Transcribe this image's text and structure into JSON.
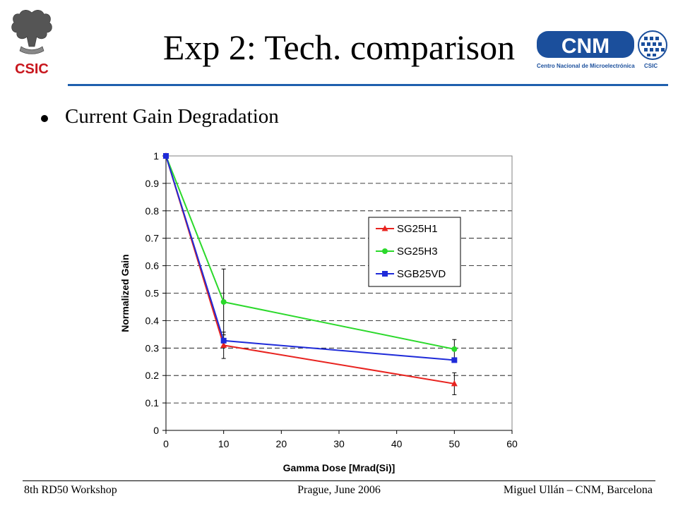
{
  "slide": {
    "title": "Exp 2: Tech. comparison",
    "bullet": "Current Gain Degradation",
    "logo_left_text": "CSIC",
    "logo_right_text": "CNM",
    "logo_right_subtext": "Centro Nacional de Microelectrónica",
    "logo_right_subtext2": "CSIC"
  },
  "footer": {
    "left": "8th RD50 Workshop",
    "center": "Prague, June 2006",
    "right": "Miguel Ullán – CNM, Barcelona"
  },
  "colors": {
    "accent": "#1f5fae",
    "plot_border": "#808080",
    "grid": "#000000"
  },
  "chart_data": {
    "type": "line",
    "title": "",
    "xlabel": "Gamma Dose [Mrad(Si)]",
    "ylabel": "Normalized Gain",
    "xlim": [
      0,
      60
    ],
    "ylim": [
      0,
      1
    ],
    "xticks": [
      "0",
      "10",
      "20",
      "30",
      "40",
      "50",
      "60"
    ],
    "yticks": [
      "0",
      "0.1",
      "0.2",
      "0.3",
      "0.4",
      "0.5",
      "0.6",
      "0.7",
      "0.8",
      "0.9",
      "1"
    ],
    "grid": "dashed horizontal",
    "legend_position": "right",
    "x": [
      0,
      10,
      50
    ],
    "series": [
      {
        "name": "SG25H1",
        "color": "#e8231f",
        "marker": "triangle",
        "values": [
          1,
          0.31,
          0.17
        ],
        "errors": [
          0,
          0.048,
          0.04
        ]
      },
      {
        "name": "SG25H3",
        "color": "#2bd92b",
        "marker": "circle",
        "values": [
          1,
          0.468,
          0.296
        ],
        "errors": [
          0,
          0.12,
          0.035
        ]
      },
      {
        "name": "SGB25VD",
        "color": "#1f2bd9",
        "marker": "square",
        "values": [
          1,
          0.327,
          0.256
        ],
        "errors": [
          0,
          0,
          0
        ]
      }
    ]
  }
}
